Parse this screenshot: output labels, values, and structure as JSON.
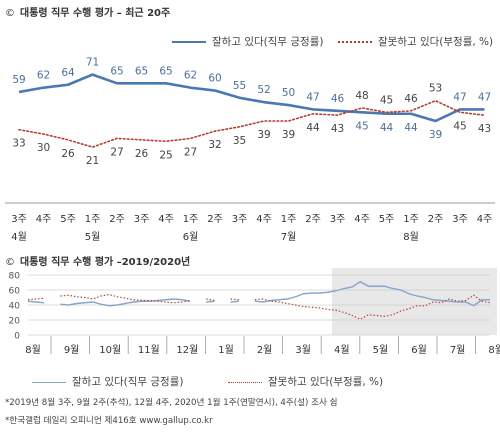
{
  "top": {
    "circle": "©",
    "title": "대통령 직무 수행 평가 – 최근 20주",
    "legend_approve": "잘하고 있다(직무 긍정률)",
    "legend_disapprove": "잘못하고 있다(부정률, %)"
  },
  "bottom": {
    "circle": "©",
    "title": "대통령 직무 수행 평가 –2019/2020년",
    "legend_approve": "잘하고 있다(직무 긍정률)",
    "legend_disapprove": "잘못하고 있다(부정률, %)"
  },
  "footnote1": "*2019년 8월 3주, 9월 2주(추석), 12월 4주, 2020년 1월 1주(연말연시), 4주(설) 조사 쉼",
  "footnote2": "*한국갤럽 데일리 오피니언 제416호 www.gallup.co.kr",
  "colors": {
    "approve": "#4a78b5",
    "disapprove": "#c0392b",
    "highlight": "#e8e8e8"
  },
  "chart_data": [
    {
      "type": "line",
      "title": "대통령 직무 수행 평가 – 최근 20주",
      "x_week_labels": [
        "3주",
        "4주",
        "5주",
        "1주",
        "2주",
        "3주",
        "4주",
        "1주",
        "2주",
        "3주",
        "4주",
        "1주",
        "2주",
        "3주",
        "4주",
        "5주",
        "1주",
        "2주",
        "3주",
        "4주"
      ],
      "x_month_labels": [
        {
          "index": 0,
          "label": "4월"
        },
        {
          "index": 3,
          "label": "5월"
        },
        {
          "index": 7,
          "label": "6월"
        },
        {
          "index": 11,
          "label": "7월"
        },
        {
          "index": 16,
          "label": "8월"
        }
      ],
      "series": [
        {
          "name": "잘하고 있다(직무 긍정률)",
          "values": [
            59,
            62,
            64,
            71,
            65,
            65,
            65,
            62,
            60,
            55,
            52,
            50,
            47,
            46,
            45,
            44,
            44,
            39,
            47,
            47
          ]
        },
        {
          "name": "잘못하고 있다(부정률, %)",
          "values": [
            33,
            30,
            26,
            21,
            27,
            26,
            25,
            27,
            32,
            35,
            39,
            39,
            44,
            43,
            48,
            45,
            46,
            53,
            45,
            43
          ]
        }
      ],
      "ylim": [
        0,
        80
      ],
      "grid": false,
      "legend": "top-right"
    },
    {
      "type": "line",
      "title": "대통령 직무 수행 평가 –2019/2020년",
      "y_ticks": [
        0,
        20,
        40,
        60,
        80
      ],
      "x_month_labels": [
        "8월",
        "9월",
        "10월",
        "11월",
        "12월",
        "1월",
        "2월",
        "3월",
        "4월",
        "5월",
        "6월",
        "7월",
        "8월"
      ],
      "ylim": [
        0,
        80
      ],
      "grid": true,
      "highlight": "last 20 weeks",
      "legend": "bottom",
      "series": [
        {
          "name": "잘하고 있다(직무 긍정률)",
          "values": [
            45,
            44,
            43,
            null,
            41,
            40,
            42,
            43,
            44,
            41,
            39,
            40,
            42,
            44,
            45,
            45,
            46,
            47,
            48,
            47,
            45,
            null,
            44,
            45,
            null,
            44,
            45,
            null,
            45,
            44,
            46,
            47,
            48,
            51,
            55,
            56,
            56,
            57,
            59,
            62,
            64,
            71,
            65,
            65,
            65,
            62,
            60,
            55,
            52,
            50,
            47,
            46,
            45,
            44,
            44,
            39,
            47,
            47
          ]
        },
        {
          "name": "잘못하고 있다(부정률, %)",
          "values": [
            47,
            48,
            49,
            null,
            52,
            53,
            51,
            50,
            48,
            52,
            54,
            51,
            49,
            47,
            46,
            46,
            45,
            44,
            43,
            44,
            46,
            null,
            48,
            46,
            null,
            48,
            47,
            null,
            47,
            48,
            45,
            44,
            42,
            40,
            38,
            37,
            36,
            34,
            33,
            30,
            26,
            21,
            27,
            26,
            25,
            27,
            32,
            35,
            39,
            39,
            44,
            43,
            48,
            45,
            46,
            53,
            45,
            43
          ]
        }
      ]
    }
  ]
}
